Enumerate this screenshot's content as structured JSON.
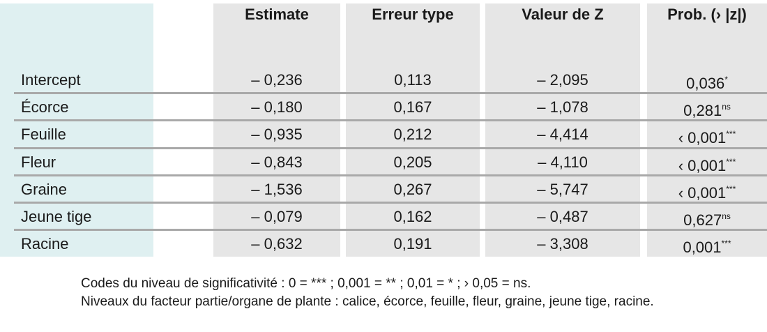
{
  "table": {
    "columns": [
      "Estimate",
      "Erreur type",
      "Valeur de Z",
      "Prob. (› |z|)"
    ],
    "rows": [
      {
        "label": "Intercept",
        "cells": [
          "– 0,236",
          "0,113",
          "– 2,095"
        ],
        "prob": "0,036",
        "sig": "*"
      },
      {
        "label": "Écorce",
        "cells": [
          "– 0,180",
          "0,167",
          "– 1,078"
        ],
        "prob": "0,281",
        "sig": "ns"
      },
      {
        "label": "Feuille",
        "cells": [
          "– 0,935",
          "0,212",
          "– 4,414"
        ],
        "prob": "‹ 0,001",
        "sig": "***"
      },
      {
        "label": "Fleur",
        "cells": [
          "– 0,843",
          "0,205",
          "– 4,110"
        ],
        "prob": "‹ 0,001",
        "sig": "***"
      },
      {
        "label": "Graine",
        "cells": [
          "– 1,536",
          "0,267",
          "– 5,747"
        ],
        "prob": "‹ 0,001",
        "sig": "***"
      },
      {
        "label": "Jeune tige",
        "cells": [
          "– 0,079",
          "0,162",
          "– 0,487"
        ],
        "prob": "0,627",
        "sig": "ns"
      },
      {
        "label": "Racine",
        "cells": [
          "– 0,632",
          "0,191",
          "– 3,308"
        ],
        "prob": "0,001",
        "sig": "***"
      }
    ],
    "notes": [
      "Codes du niveau de significativité : 0 = *** ; 0,001 = ** ; 0,01 = * ; › 0,05 = ns.",
      "Niveaux du facteur partie/organe de plante : calice, écorce, feuille, fleur, graine, jeune tige, racine."
    ]
  }
}
